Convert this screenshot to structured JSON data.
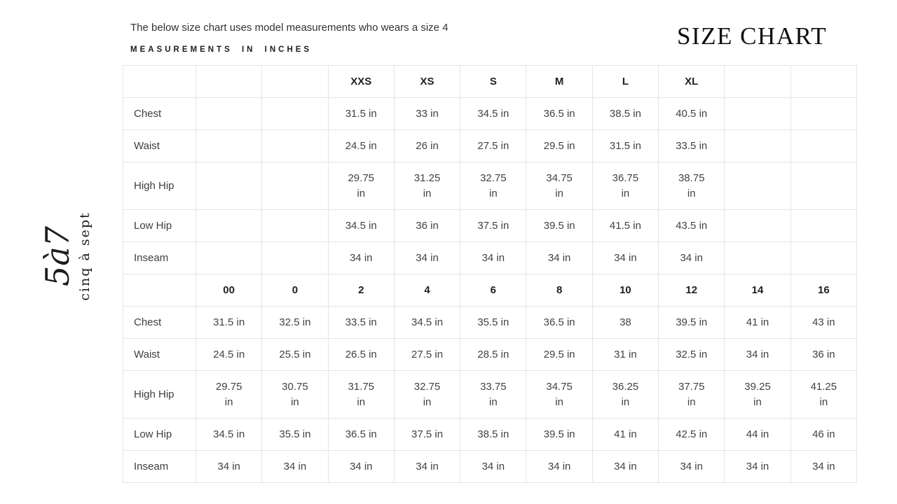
{
  "header": {
    "note": "The below size chart uses model measurements who wears a size 4",
    "measurements_label": "MEASUREMENTS IN INCHES",
    "title": "SIZE CHART"
  },
  "logo": {
    "mark": "5à7",
    "wordmark": "cinq à sept"
  },
  "chart_data": {
    "type": "table",
    "title": "SIZE CHART",
    "units": "inches",
    "sections": [
      {
        "name": "alpha-sizes",
        "header_cells": [
          "",
          "",
          "",
          "XXS",
          "XS",
          "S",
          "M",
          "L",
          "XL",
          "",
          ""
        ],
        "rows": [
          {
            "label": "Chest",
            "cells": [
              "",
              "",
              "31.5 in",
              "33 in",
              "34.5 in",
              "36.5 in",
              "38.5 in",
              "40.5 in",
              "",
              ""
            ]
          },
          {
            "label": "Waist",
            "cells": [
              "",
              "",
              "24.5 in",
              "26 in",
              "27.5 in",
              "29.5 in",
              "31.5 in",
              "33.5 in",
              "",
              ""
            ]
          },
          {
            "label": "High Hip",
            "cells": [
              "",
              "",
              "29.75 in",
              "31.25 in",
              "32.75 in",
              "34.75 in",
              "36.75 in",
              "38.75 in",
              "",
              ""
            ],
            "tall": true
          },
          {
            "label": "Low Hip",
            "cells": [
              "",
              "",
              "34.5 in",
              "36 in",
              "37.5 in",
              "39.5 in",
              "41.5 in",
              "43.5 in",
              "",
              ""
            ]
          },
          {
            "label": "Inseam",
            "cells": [
              "",
              "",
              "34 in",
              "34 in",
              "34 in",
              "34 in",
              "34 in",
              "34 in",
              "",
              ""
            ]
          }
        ]
      },
      {
        "name": "numeric-sizes",
        "header_cells": [
          "",
          "00",
          "0",
          "2",
          "4",
          "6",
          "8",
          "10",
          "12",
          "14",
          "16"
        ],
        "rows": [
          {
            "label": "Chest",
            "cells": [
              "31.5 in",
              "32.5 in",
              "33.5 in",
              "34.5 in",
              "35.5 in",
              "36.5 in",
              "38",
              "39.5 in",
              "41 in",
              "43 in"
            ]
          },
          {
            "label": "Waist",
            "cells": [
              "24.5 in",
              "25.5 in",
              "26.5 in",
              "27.5 in",
              "28.5 in",
              "29.5 in",
              "31 in",
              "32.5 in",
              "34 in",
              "36 in"
            ]
          },
          {
            "label": "High Hip",
            "cells": [
              "29.75 in",
              "30.75 in",
              "31.75 in",
              "32.75 in",
              "33.75 in",
              "34.75 in",
              "36.25 in",
              "37.75 in",
              "39.25 in",
              "41.25 in"
            ],
            "tall": true
          },
          {
            "label": "Low Hip",
            "cells": [
              "34.5 in",
              "35.5 in",
              "36.5 in",
              "37.5 in",
              "38.5 in",
              "39.5 in",
              "41 in",
              "42.5 in",
              "44 in",
              "46 in"
            ]
          },
          {
            "label": "Inseam",
            "cells": [
              "34 in",
              "34 in",
              "34 in",
              "34 in",
              "34 in",
              "34 in",
              "34 in",
              "34 in",
              "34 in",
              "34 in"
            ]
          }
        ]
      }
    ]
  }
}
